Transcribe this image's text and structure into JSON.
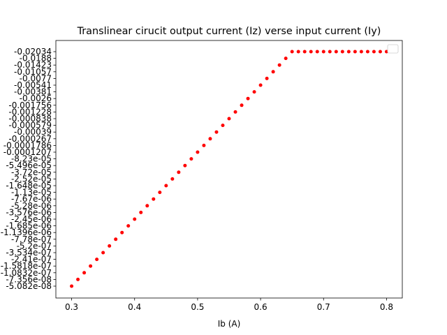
{
  "chart_data": {
    "type": "scatter",
    "title": "Translinear cirucit output current (Iz) verse input current (Iy)",
    "xlabel": "Ib (A)",
    "ylabel": "",
    "xlim": [
      0.275,
      0.825
    ],
    "x_ticks": [
      "0.3",
      "0.4",
      "0.5",
      "0.6",
      "0.7",
      "0.8"
    ],
    "y_scale": "categorical",
    "y_ticks": [
      "-5.082e-08",
      "-7.356e-08",
      "-1.0832e-07",
      "-1.5818e-07",
      "-2.41e-07",
      "-3.534e-07",
      "-5.2e-07",
      "-7.78e-07",
      "-1.1396e-06",
      "-1.685e-06",
      "-2.45e-06",
      "-3.576e-06",
      "-5.28e-06",
      "-7.67e-06",
      "-1.13e-05",
      "-1.648e-05",
      "-2.52e-05",
      "-3.72e-05",
      "-5.496e-05",
      "-8.23e-05",
      "-0.0001207",
      "-0.0001786",
      "-0.000267",
      "-0.00039",
      "-0.000579",
      "-0.000838",
      "-0.001228",
      "-0.001756",
      "-0.0026",
      "-0.00381",
      "-0.00541",
      "-0.0077",
      "-0.01057",
      "-0.01423",
      "-0.0188",
      "-0.02034"
    ],
    "grid": false,
    "legend": "upper right (empty)",
    "marker_color": "#ff0000",
    "series": [
      {
        "x": [
          0.3,
          0.31,
          0.32,
          0.33,
          0.34,
          0.35,
          0.36,
          0.37,
          0.38,
          0.39,
          0.4,
          0.41,
          0.42,
          0.43,
          0.44,
          0.45,
          0.46,
          0.47,
          0.48,
          0.49,
          0.5,
          0.51,
          0.52,
          0.53,
          0.54,
          0.55,
          0.56,
          0.57,
          0.58,
          0.59,
          0.6,
          0.61,
          0.62,
          0.63,
          0.64,
          0.65,
          0.66,
          0.67,
          0.68,
          0.69,
          0.7,
          0.71,
          0.72,
          0.73,
          0.74,
          0.75,
          0.76,
          0.77,
          0.78,
          0.79,
          0.8
        ],
        "y": [
          "-5.082e-08",
          "-7.356e-08",
          "-1.0832e-07",
          "-1.5818e-07",
          "-2.41e-07",
          "-3.534e-07",
          "-5.2e-07",
          "-7.78e-07",
          "-1.1396e-06",
          "-1.685e-06",
          "-2.45e-06",
          "-3.576e-06",
          "-5.28e-06",
          "-7.67e-06",
          "-1.13e-05",
          "-1.648e-05",
          "-2.52e-05",
          "-3.72e-05",
          "-5.496e-05",
          "-8.23e-05",
          "-0.0001207",
          "-0.0001786",
          "-0.000267",
          "-0.00039",
          "-0.000579",
          "-0.000838",
          "-0.001228",
          "-0.001756",
          "-0.0026",
          "-0.00381",
          "-0.00541",
          "-0.0077",
          "-0.01057",
          "-0.01423",
          "-0.0188",
          "-0.02034",
          "-0.02034",
          "-0.02034",
          "-0.02034",
          "-0.02034",
          "-0.02034",
          "-0.02034",
          "-0.02034",
          "-0.02034",
          "-0.02034",
          "-0.02034",
          "-0.02034",
          "-0.02034",
          "-0.02034",
          "-0.02034",
          "-0.02034"
        ]
      }
    ]
  }
}
